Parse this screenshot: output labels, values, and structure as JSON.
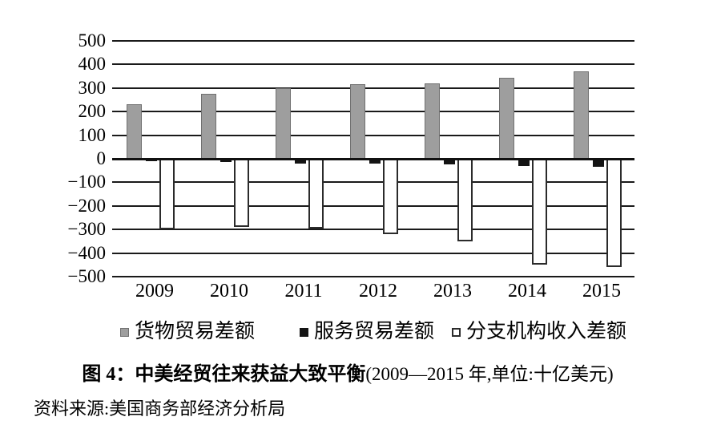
{
  "figure": {
    "title_bold": "图 4：中美经贸往来获益大致平衡",
    "title_paren": "(2009—2015 年,单位:十亿美元)",
    "source_note": "资料来源:美国商务部经济分析局"
  },
  "colors": {
    "goods_bar": "#9e9e9e",
    "goods_bar_border": "#707070",
    "services_bar": "#141414",
    "branch_bar": "#ffffff",
    "branch_bar_border": "#2b2b2b",
    "grid_line": "#1a1a1a",
    "zero_line": "#111111",
    "text": "#000000"
  },
  "chart_data": {
    "type": "bar",
    "title": "中美经贸往来获益大致平衡",
    "unit": "十亿美元",
    "categories": [
      "2009",
      "2010",
      "2011",
      "2012",
      "2013",
      "2014",
      "2015"
    ],
    "series": [
      {
        "key": "goods",
        "name": "货物贸易差额",
        "values": [
          230,
          275,
          300,
          315,
          320,
          345,
          370
        ]
      },
      {
        "key": "services",
        "name": "服务贸易差额",
        "values": [
          -10,
          -15,
          -20,
          -20,
          -25,
          -30,
          -35
        ]
      },
      {
        "key": "branch",
        "name": "分支机构收入差额",
        "values": [
          -300,
          -290,
          -295,
          -320,
          -350,
          -450,
          -460
        ]
      }
    ],
    "ylim": [
      -500,
      500
    ],
    "grid": true,
    "legend_position": "bottom",
    "yticks": [
      {
        "value": 500,
        "label": "500"
      },
      {
        "value": 400,
        "label": "400"
      },
      {
        "value": 300,
        "label": "300"
      },
      {
        "value": 200,
        "label": "200"
      },
      {
        "value": 100,
        "label": "100"
      },
      {
        "value": 0,
        "label": "0"
      },
      {
        "value": -100,
        "label": "−100"
      },
      {
        "value": -200,
        "label": "−200"
      },
      {
        "value": -300,
        "label": "−300"
      },
      {
        "value": -400,
        "label": "−400"
      },
      {
        "value": -500,
        "label": "−500"
      }
    ]
  }
}
